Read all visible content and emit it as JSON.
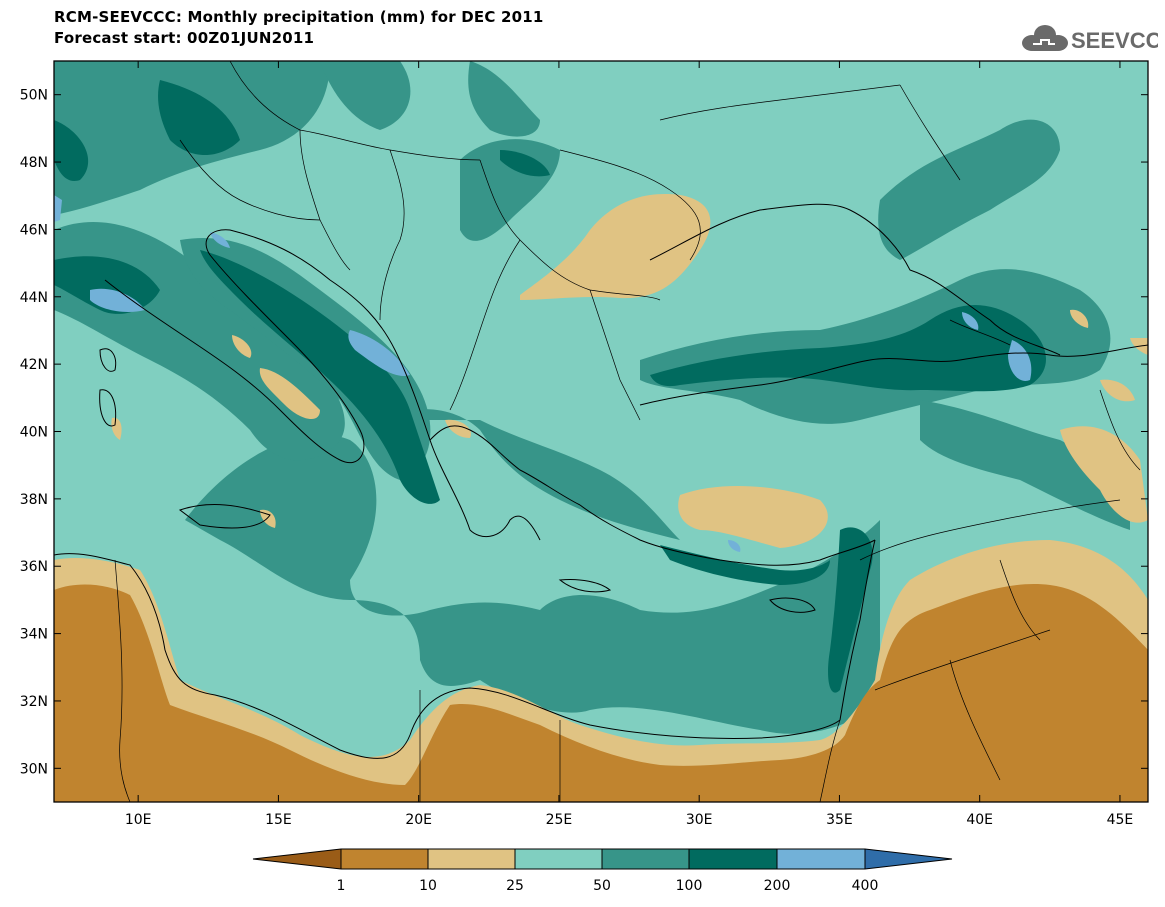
{
  "title": {
    "line1": "RCM-SEEVCCC: Monthly precipitation (mm) for DEC 2011",
    "line2": "Forecast start: 00Z01JUN2011"
  },
  "logo": {
    "text": "SEEVCCC",
    "icon": "cloud-icon"
  },
  "map": {
    "lat_ticks": [
      "50N",
      "48N",
      "46N",
      "44N",
      "42N",
      "40N",
      "38N",
      "36N",
      "34N",
      "32N",
      "30N"
    ],
    "lon_ticks": [
      "10E",
      "15E",
      "20E",
      "25E",
      "30E",
      "35E",
      "40E",
      "45E"
    ],
    "lon_range": [
      7,
      46
    ],
    "lat_range": [
      29,
      51
    ]
  },
  "legend": {
    "colors": [
      "#9a5c17",
      "#c0842f",
      "#e0c383",
      "#80cfc0",
      "#379589",
      "#016b5f",
      "#72b1d8",
      "#2f6da9"
    ],
    "labels": [
      "1",
      "10",
      "25",
      "50",
      "100",
      "200",
      "400"
    ]
  }
}
